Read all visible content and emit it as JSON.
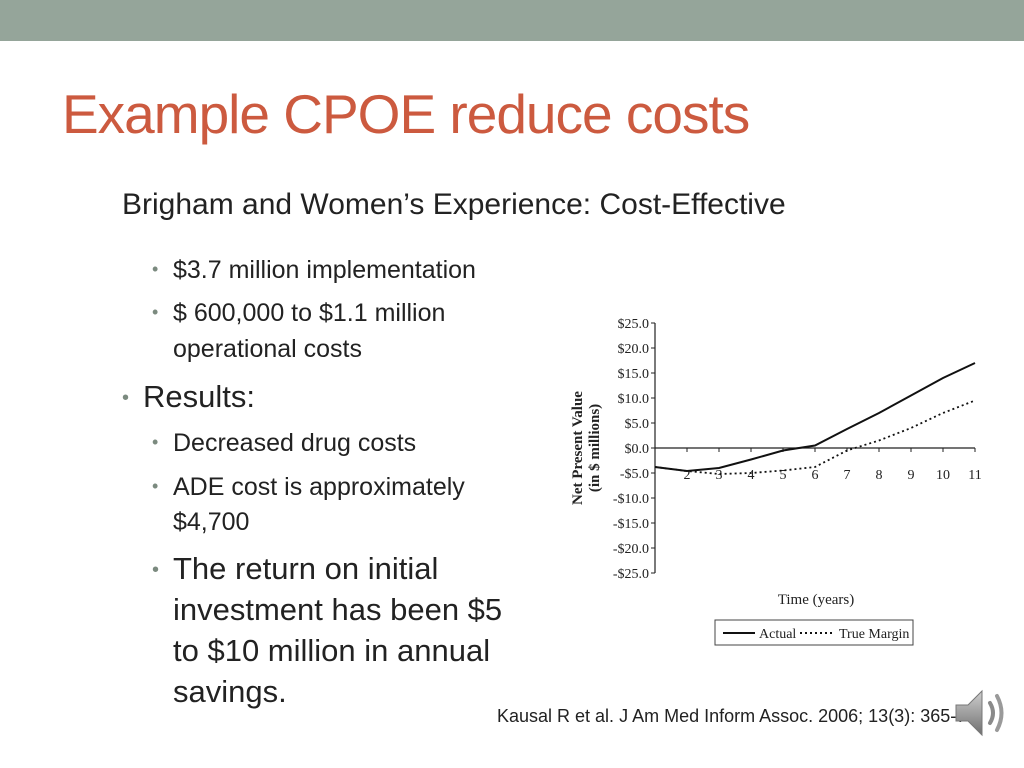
{
  "slide": {
    "title": "Example CPOE reduce costs",
    "subtitle": "Brigham and Women’s Experience: Cost-Effective",
    "bullets": {
      "b1": "$3.7 million implementation",
      "b2a": "$ 600,000 to $1.1 million",
      "b2b": "operational costs",
      "results": "Results:",
      "b3": "Decreased drug costs",
      "b4a": "ADE cost is approximately",
      "b4b": "$4,700",
      "b5a": "The return on initial",
      "b5b": "investment has been $5",
      "b5c": "to $10 million in annual",
      "b5d": "savings."
    },
    "citation": "Kausal R et al. J Am Med Inform Assoc. 2006; 13(3): 365-7"
  },
  "icons": {
    "audio": "speaker-icon"
  },
  "colors": {
    "top_bar": "#95a59a",
    "title": "#cc5a3f"
  },
  "chart_data": {
    "type": "line",
    "xlabel": "Time (years)",
    "ylabel": "Net Present Value (in $ millions)",
    "x_ticks": [
      "2",
      "3",
      "4",
      "5",
      "6",
      "7",
      "8",
      "9",
      "10",
      "11"
    ],
    "y_ticks": [
      "$25.0",
      "$20.0",
      "$15.0",
      "$10.0",
      "$5.0",
      "$0.0",
      "-$5.0",
      "-$10.0",
      "-$15.0",
      "-$20.0",
      "-$25.0"
    ],
    "xlim": [
      1,
      11
    ],
    "ylim": [
      -25,
      25
    ],
    "series": [
      {
        "name": "Actual",
        "style": "solid",
        "x": [
          1,
          2,
          3,
          4,
          5,
          6,
          7,
          8,
          9,
          10,
          11
        ],
        "y": [
          -3.8,
          -4.6,
          -4.0,
          -2.3,
          -0.5,
          0.5,
          3.8,
          7.0,
          10.5,
          14.0,
          17.0
        ]
      },
      {
        "name": "True Margin",
        "style": "dotted",
        "x": [
          1,
          2,
          3,
          4,
          5,
          6,
          7,
          8,
          9,
          10,
          11
        ],
        "y": [
          -3.8,
          -4.6,
          -5.2,
          -5.0,
          -4.5,
          -3.8,
          -0.5,
          1.5,
          4.0,
          7.0,
          9.5
        ]
      }
    ]
  }
}
